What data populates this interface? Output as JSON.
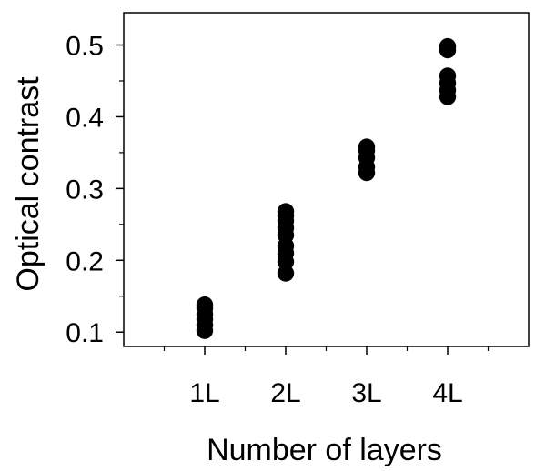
{
  "chart_data": {
    "type": "scatter",
    "title": "",
    "xlabel": "Number of layers",
    "ylabel": "Optical contrast",
    "categories": [
      "1L",
      "2L",
      "3L",
      "4L"
    ],
    "xlim": [
      0,
      5
    ],
    "ylim": [
      0.08,
      0.545
    ],
    "y_ticks": [
      0.1,
      0.2,
      0.3,
      0.4,
      0.5
    ],
    "y_tick_labels": [
      "0.1",
      "0.2",
      "0.3",
      "0.4",
      "0.5"
    ],
    "grid": false,
    "legend": "none",
    "point_color": "#000000",
    "points": [
      {
        "x": 1,
        "y": 0.102
      },
      {
        "x": 1,
        "y": 0.11
      },
      {
        "x": 1,
        "y": 0.118
      },
      {
        "x": 1,
        "y": 0.125
      },
      {
        "x": 1,
        "y": 0.133
      },
      {
        "x": 1,
        "y": 0.138
      },
      {
        "x": 2,
        "y": 0.182
      },
      {
        "x": 2,
        "y": 0.198
      },
      {
        "x": 2,
        "y": 0.21
      },
      {
        "x": 2,
        "y": 0.22
      },
      {
        "x": 2,
        "y": 0.235
      },
      {
        "x": 2,
        "y": 0.245
      },
      {
        "x": 2,
        "y": 0.255
      },
      {
        "x": 2,
        "y": 0.262
      },
      {
        "x": 2,
        "y": 0.268
      },
      {
        "x": 3,
        "y": 0.322
      },
      {
        "x": 3,
        "y": 0.33
      },
      {
        "x": 3,
        "y": 0.343
      },
      {
        "x": 3,
        "y": 0.353
      },
      {
        "x": 3,
        "y": 0.358
      },
      {
        "x": 4,
        "y": 0.428
      },
      {
        "x": 4,
        "y": 0.437
      },
      {
        "x": 4,
        "y": 0.447
      },
      {
        "x": 4,
        "y": 0.457
      },
      {
        "x": 4,
        "y": 0.493
      },
      {
        "x": 4,
        "y": 0.498
      }
    ]
  }
}
